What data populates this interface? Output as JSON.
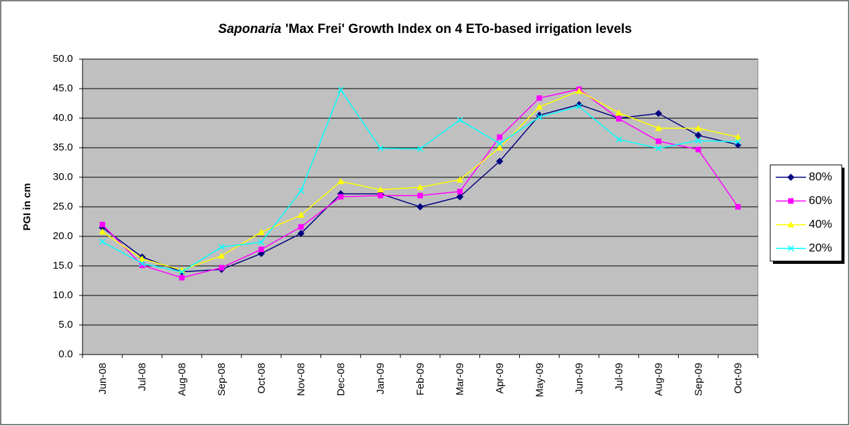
{
  "chart_data": {
    "type": "line",
    "title": [
      "Saponaria",
      "'Max Frei' Growth Index on 4 ETo-based irrigation levels"
    ],
    "y_label": "PGI in cm",
    "categories": [
      "Jun-08",
      "Jul-08",
      "Aug-08",
      "Sep-08",
      "Oct-08",
      "Nov-08",
      "Dec-08",
      "Jan-09",
      "Feb-09",
      "Mar-09",
      "Apr-09",
      "May-09",
      "Jun-09",
      "Jul-09",
      "Aug-09",
      "Sep-09",
      "Oct-09"
    ],
    "series": [
      {
        "name": "80%",
        "color": "#000080",
        "marker": "diamond",
        "values": [
          21.5,
          16.5,
          14.0,
          14.4,
          17.1,
          20.5,
          27.2,
          27.2,
          25.0,
          26.7,
          32.7,
          40.5,
          42.3,
          40.0,
          40.8,
          37.1,
          35.5
        ]
      },
      {
        "name": "60%",
        "color": "#ff00ff",
        "marker": "square",
        "values": [
          22.0,
          15.1,
          13.0,
          14.7,
          17.8,
          21.6,
          26.7,
          26.9,
          26.9,
          27.6,
          36.8,
          43.4,
          44.9,
          39.9,
          36.1,
          34.7,
          25.0
        ]
      },
      {
        "name": "40%",
        "color": "#ffff00",
        "marker": "triangle",
        "values": [
          20.8,
          16.2,
          14.3,
          16.7,
          20.7,
          23.6,
          29.3,
          27.9,
          28.3,
          29.6,
          35.0,
          41.9,
          44.6,
          40.9,
          38.3,
          38.3,
          36.8
        ]
      },
      {
        "name": "20%",
        "color": "#00ffff",
        "marker": "x",
        "values": [
          19.1,
          15.4,
          14.0,
          18.2,
          19.0,
          27.7,
          44.8,
          34.9,
          34.8,
          39.7,
          35.7,
          40.2,
          42.0,
          36.4,
          34.9,
          36.2,
          36.0
        ]
      }
    ],
    "ylim": [
      0,
      50
    ],
    "yticks": [
      {
        "value": 0,
        "label": "0.0"
      },
      {
        "value": 5,
        "label": "5.0"
      },
      {
        "value": 10,
        "label": "10.0"
      },
      {
        "value": 15,
        "label": "15.0"
      },
      {
        "value": 20,
        "label": "20.0"
      },
      {
        "value": 25,
        "label": "25.0"
      },
      {
        "value": 30,
        "label": "30.0"
      },
      {
        "value": 35,
        "label": "35.0"
      },
      {
        "value": 40,
        "label": "40.0"
      },
      {
        "value": 45,
        "label": "45.0"
      },
      {
        "value": 50,
        "label": "50.0"
      }
    ],
    "grid": true,
    "plot_background": "#c0c0c0",
    "legend": "right"
  }
}
